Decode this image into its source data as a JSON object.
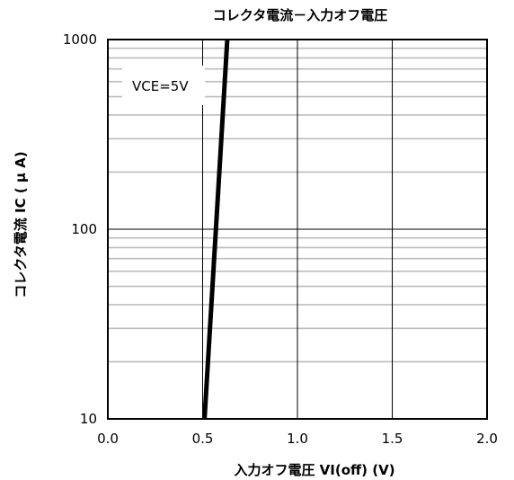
{
  "chart_data": {
    "type": "line",
    "title": "コレクタ電流－入力オフ電圧",
    "xlabel": "入力オフ電圧 VI(off) (V)",
    "ylabel": "コレクタ電流 IC ( μ A)",
    "xlim": [
      0.0,
      2.0
    ],
    "ylim": [
      10,
      1000
    ],
    "yscale": "log",
    "grid": true,
    "x_ticks": [
      "0.0",
      "0.5",
      "1.0",
      "1.5",
      "2.0"
    ],
    "y_ticks": [
      "10",
      "100",
      "1000"
    ],
    "annotation": "VCE=5V",
    "series": [
      {
        "x": [
          0.51,
          0.63
        ],
        "y": [
          10,
          1000
        ]
      }
    ]
  }
}
